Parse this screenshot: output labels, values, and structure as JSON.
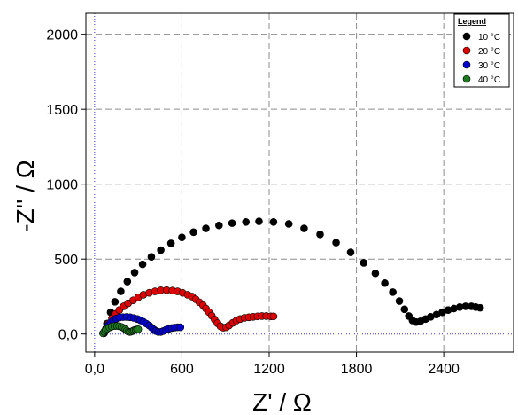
{
  "chart_data": {
    "type": "scatter",
    "xlabel": "Z' / Ω",
    "ylabel": "-Z'' / Ω",
    "xlim": [
      -60,
      2880
    ],
    "ylim": [
      -120,
      2140
    ],
    "x_ticks": [
      0,
      600,
      1200,
      1800,
      2400
    ],
    "x_tick_labels": [
      "0,0",
      "600",
      "1200",
      "1800",
      "2400"
    ],
    "y_ticks": [
      0,
      500,
      1000,
      1500,
      2000
    ],
    "y_tick_labels": [
      "0,0",
      "500",
      "1000",
      "1500",
      "2000"
    ],
    "grid": true,
    "legend": {
      "title": "Legend",
      "position": "top-right"
    },
    "series": [
      {
        "name": "10 °C",
        "color": "#000000",
        "points": [
          [
            65,
            5
          ],
          [
            85,
            70
          ],
          [
            110,
            145
          ],
          [
            140,
            215
          ],
          [
            180,
            285
          ],
          [
            225,
            350
          ],
          [
            275,
            410
          ],
          [
            330,
            465
          ],
          [
            390,
            515
          ],
          [
            455,
            560
          ],
          [
            525,
            605
          ],
          [
            600,
            645
          ],
          [
            680,
            680
          ],
          [
            765,
            705
          ],
          [
            855,
            725
          ],
          [
            945,
            740
          ],
          [
            1040,
            748
          ],
          [
            1130,
            752
          ],
          [
            1230,
            748
          ],
          [
            1335,
            735
          ],
          [
            1440,
            705
          ],
          [
            1550,
            665
          ],
          [
            1660,
            610
          ],
          [
            1760,
            545
          ],
          [
            1850,
            475
          ],
          [
            1930,
            405
          ],
          [
            1995,
            340
          ],
          [
            2050,
            280
          ],
          [
            2095,
            220
          ],
          [
            2130,
            165
          ],
          [
            2160,
            120
          ],
          [
            2185,
            90
          ],
          [
            2210,
            80
          ],
          [
            2240,
            85
          ],
          [
            2275,
            100
          ],
          [
            2310,
            115
          ],
          [
            2350,
            130
          ],
          [
            2390,
            145
          ],
          [
            2430,
            160
          ],
          [
            2470,
            170
          ],
          [
            2510,
            180
          ],
          [
            2550,
            185
          ],
          [
            2590,
            185
          ],
          [
            2620,
            180
          ],
          [
            2650,
            175
          ]
        ]
      },
      {
        "name": "20 °C",
        "color": "#dd0000",
        "points": [
          [
            62,
            5
          ],
          [
            78,
            35
          ],
          [
            95,
            70
          ],
          [
            120,
            105
          ],
          [
            145,
            135
          ],
          [
            170,
            160
          ],
          [
            200,
            185
          ],
          [
            230,
            205
          ],
          [
            265,
            225
          ],
          [
            300,
            245
          ],
          [
            335,
            262
          ],
          [
            375,
            275
          ],
          [
            415,
            285
          ],
          [
            455,
            292
          ],
          [
            495,
            293
          ],
          [
            535,
            290
          ],
          [
            570,
            285
          ],
          [
            605,
            275
          ],
          [
            640,
            262
          ],
          [
            670,
            250
          ],
          [
            695,
            232
          ],
          [
            720,
            212
          ],
          [
            745,
            192
          ],
          [
            765,
            170
          ],
          [
            785,
            147
          ],
          [
            805,
            122
          ],
          [
            825,
            97
          ],
          [
            845,
            72
          ],
          [
            865,
            52
          ],
          [
            885,
            42
          ],
          [
            905,
            45
          ],
          [
            925,
            58
          ],
          [
            950,
            75
          ],
          [
            975,
            90
          ],
          [
            1000,
            100
          ],
          [
            1030,
            108
          ],
          [
            1060,
            112
          ],
          [
            1090,
            115
          ],
          [
            1120,
            118
          ],
          [
            1150,
            120
          ],
          [
            1180,
            120
          ],
          [
            1210,
            118
          ],
          [
            1230,
            118
          ]
        ]
      },
      {
        "name": "30 °C",
        "color": "#0000cc",
        "points": [
          [
            60,
            5
          ],
          [
            70,
            20
          ],
          [
            82,
            40
          ],
          [
            95,
            60
          ],
          [
            110,
            78
          ],
          [
            128,
            92
          ],
          [
            148,
            103
          ],
          [
            170,
            110
          ],
          [
            195,
            113
          ],
          [
            220,
            114
          ],
          [
            245,
            112
          ],
          [
            270,
            107
          ],
          [
            295,
            100
          ],
          [
            315,
            92
          ],
          [
            335,
            82
          ],
          [
            355,
            70
          ],
          [
            375,
            57
          ],
          [
            392,
            43
          ],
          [
            408,
            30
          ],
          [
            422,
            20
          ],
          [
            438,
            14
          ],
          [
            455,
            14
          ],
          [
            472,
            20
          ],
          [
            490,
            28
          ],
          [
            510,
            35
          ],
          [
            530,
            40
          ],
          [
            550,
            43
          ],
          [
            570,
            45
          ],
          [
            590,
            45
          ]
        ]
      },
      {
        "name": "40 °C",
        "color": "#1f7a1f",
        "points": [
          [
            58,
            5
          ],
          [
            66,
            15
          ],
          [
            76,
            26
          ],
          [
            88,
            36
          ],
          [
            102,
            44
          ],
          [
            118,
            50
          ],
          [
            136,
            53
          ],
          [
            154,
            54
          ],
          [
            170,
            52
          ],
          [
            186,
            47
          ],
          [
            200,
            40
          ],
          [
            212,
            31
          ],
          [
            222,
            22
          ],
          [
            232,
            16
          ],
          [
            242,
            14
          ],
          [
            252,
            16
          ],
          [
            262,
            21
          ],
          [
            272,
            26
          ],
          [
            282,
            29
          ],
          [
            292,
            31
          ],
          [
            300,
            32
          ]
        ]
      }
    ]
  }
}
